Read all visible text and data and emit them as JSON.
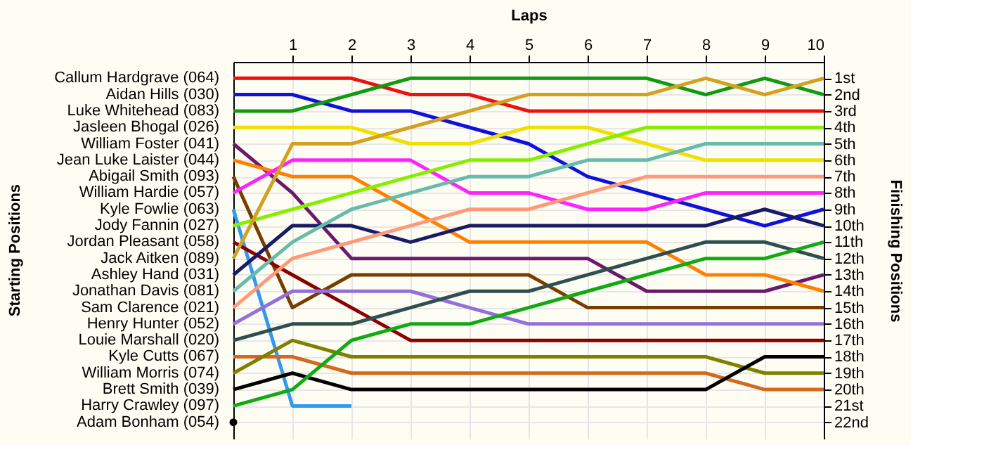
{
  "chart_data": {
    "type": "line",
    "xlabel": "Laps",
    "ylabel": "Finishing Positions",
    "annotations": [
      "Starting Positions"
    ],
    "x": [
      0,
      1,
      2,
      3,
      4,
      5,
      6,
      7,
      8,
      9,
      10
    ],
    "xlim": [
      0,
      10
    ],
    "xticks": [
      1,
      2,
      3,
      4,
      5,
      6,
      7,
      8,
      9,
      10
    ],
    "ylim": [
      23,
      0
    ],
    "yticks": [
      {
        "value": 1,
        "label": "1st"
      },
      {
        "value": 2,
        "label": "2nd"
      },
      {
        "value": 3,
        "label": "3rd"
      },
      {
        "value": 4,
        "label": "4th"
      },
      {
        "value": 5,
        "label": "5th"
      },
      {
        "value": 6,
        "label": "6th"
      },
      {
        "value": 7,
        "label": "7th"
      },
      {
        "value": 8,
        "label": "8th"
      },
      {
        "value": 9,
        "label": "9th"
      },
      {
        "value": 10,
        "label": "10th"
      },
      {
        "value": 11,
        "label": "11th"
      },
      {
        "value": 12,
        "label": "12th"
      },
      {
        "value": 13,
        "label": "13th"
      },
      {
        "value": 14,
        "label": "14th"
      },
      {
        "value": 15,
        "label": "15th"
      },
      {
        "value": 16,
        "label": "16th"
      },
      {
        "value": 17,
        "label": "17th"
      },
      {
        "value": 18,
        "label": "18th"
      },
      {
        "value": 19,
        "label": "19th"
      },
      {
        "value": 20,
        "label": "20th"
      },
      {
        "value": 21,
        "label": "21st"
      },
      {
        "value": 22,
        "label": "22nd"
      }
    ],
    "grid": true,
    "line_style": "solid",
    "marker": "none",
    "legend": "left",
    "series": [
      {
        "name": "Callum Hardgrave (064)",
        "color": "#ee1111",
        "values": [
          1,
          1,
          1,
          2,
          2,
          3,
          3,
          3,
          3,
          3,
          3
        ]
      },
      {
        "name": "Aidan Hills (030)",
        "color": "#1111dd",
        "values": [
          2,
          2,
          3,
          3,
          4,
          5,
          7,
          8,
          9,
          10,
          9
        ]
      },
      {
        "name": "Luke Whitehead (083)",
        "color": "#119911",
        "values": [
          3,
          3,
          2,
          1,
          1,
          1,
          1,
          1,
          2,
          1,
          2
        ]
      },
      {
        "name": "Jasleen Bhogal (026)",
        "color": "#f0e000",
        "values": [
          4,
          4,
          4,
          5,
          5,
          4,
          4,
          5,
          6,
          6,
          6
        ]
      },
      {
        "name": "William Foster (041)",
        "color": "#6b1a6b",
        "values": [
          5,
          8,
          12,
          12,
          12,
          12,
          12,
          14,
          14,
          14,
          13
        ]
      },
      {
        "name": "Jean Luke Laister (044)",
        "color": "#ff8000",
        "values": [
          6,
          7,
          7,
          9,
          11,
          11,
          11,
          11,
          13,
          13,
          14
        ]
      },
      {
        "name": "Abigail Smith (093)",
        "color": "#7a3d00",
        "values": [
          7,
          15,
          13,
          13,
          13,
          13,
          15,
          15,
          15,
          15,
          15
        ]
      },
      {
        "name": "William Hardie (057)",
        "color": "#ff22ff",
        "values": [
          8,
          6,
          6,
          6,
          8,
          8,
          9,
          9,
          8,
          8,
          8
        ]
      },
      {
        "name": "Kyle Fowlie (063)",
        "color": "#3399ee",
        "values": [
          9,
          21,
          21,
          null,
          null,
          null,
          null,
          null,
          null,
          null,
          null
        ]
      },
      {
        "name": "Jody Fannin (027)",
        "color": "#88ee00",
        "values": [
          10,
          9,
          8,
          7,
          6,
          6,
          5,
          4,
          4,
          4,
          4
        ]
      },
      {
        "name": "Jordan Pleasant (058)",
        "color": "#8b0000",
        "values": [
          11,
          13,
          15,
          17,
          17,
          17,
          17,
          17,
          17,
          17,
          17
        ]
      },
      {
        "name": "Jack Aitken (089)",
        "color": "#d4a020",
        "values": [
          12,
          5,
          5,
          4,
          3,
          2,
          2,
          2,
          1,
          2,
          1
        ]
      },
      {
        "name": "Ashley Hand (031)",
        "color": "#1a1a66",
        "values": [
          13,
          10,
          10,
          11,
          10,
          10,
          10,
          10,
          10,
          9,
          10
        ]
      },
      {
        "name": "Jonathan Davis (081)",
        "color": "#66bbaa",
        "values": [
          14,
          11,
          9,
          8,
          7,
          7,
          6,
          6,
          5,
          5,
          5
        ]
      },
      {
        "name": "Sam Clarence (021)",
        "color": "#ff9977",
        "values": [
          15,
          12,
          11,
          10,
          9,
          9,
          8,
          7,
          7,
          7,
          7
        ]
      },
      {
        "name": "Henry Hunter (052)",
        "color": "#9370db",
        "values": [
          16,
          14,
          14,
          14,
          15,
          16,
          16,
          16,
          16,
          16,
          16
        ]
      },
      {
        "name": "Louie Marshall (020)",
        "color": "#2f4f4f",
        "values": [
          17,
          16,
          16,
          15,
          14,
          14,
          13,
          12,
          11,
          11,
          12
        ]
      },
      {
        "name": "Kyle Cutts (067)",
        "color": "#d2691e",
        "values": [
          18,
          18,
          19,
          19,
          19,
          19,
          19,
          19,
          19,
          20,
          20
        ]
      },
      {
        "name": "William Morris (074)",
        "color": "#808000",
        "values": [
          19,
          17,
          18,
          18,
          18,
          18,
          18,
          18,
          18,
          19,
          19
        ]
      },
      {
        "name": "Brett Smith (039)",
        "color": "#000000",
        "values": [
          20,
          19,
          20,
          20,
          20,
          20,
          20,
          20,
          20,
          18,
          18
        ]
      },
      {
        "name": "Harry Crawley (097)",
        "color": "#11aa11",
        "values": [
          21,
          20,
          17,
          16,
          16,
          15,
          14,
          13,
          12,
          12,
          11
        ]
      },
      {
        "name": "Adam Bonham (054)",
        "color": "#000000",
        "marker": "circle",
        "values": [
          22,
          null,
          null,
          null,
          null,
          null,
          null,
          null,
          null,
          null,
          null
        ]
      }
    ]
  }
}
